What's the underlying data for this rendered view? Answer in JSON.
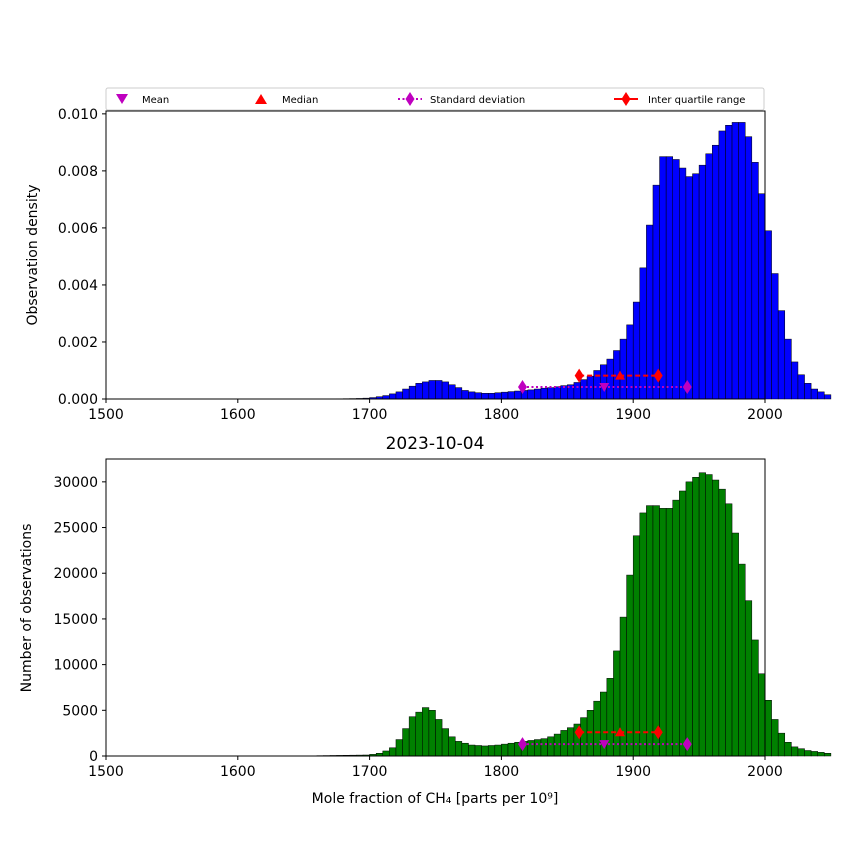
{
  "legend": {
    "placement": "top",
    "items": [
      {
        "label": "Mean",
        "marker": "triangle-down",
        "color": "#bf00bf"
      },
      {
        "label": "Median",
        "marker": "triangle-up",
        "color": "#ff0000"
      },
      {
        "label": "Standard deviation",
        "marker": "diamond-dotted-line",
        "color": "#bf00bf"
      },
      {
        "label": "Inter quartile range",
        "marker": "diamond-solid-line",
        "color": "#ff0000"
      }
    ]
  },
  "chart_data": [
    {
      "type": "bar",
      "title": "",
      "xlabel": "",
      "ylabel": "Observation density",
      "xlim": [
        1500,
        2000
      ],
      "ylim": [
        0,
        0.0101
      ],
      "xticks": [
        1500,
        1600,
        1700,
        1800,
        1900,
        2000
      ],
      "xtick_labels": [
        "1500",
        "1600",
        "1700",
        "1800",
        "1900",
        "2000"
      ],
      "yticks": [
        0,
        0.002,
        0.004,
        0.006,
        0.008,
        0.01
      ],
      "ytick_labels": [
        "0.000",
        "0.002",
        "0.004",
        "0.006",
        "0.008",
        "0.010"
      ],
      "bin_start": 1500,
      "bin_width": 5,
      "bar_color": "#0000ff",
      "values": [
        0,
        0,
        0,
        0,
        0,
        0,
        0,
        0,
        0,
        0,
        0,
        0,
        0,
        0,
        0,
        0,
        0,
        0,
        0,
        0,
        0,
        0,
        0,
        0,
        0,
        0,
        0,
        0,
        0,
        0,
        1e-06,
        2e-06,
        3e-06,
        5e-06,
        7e-06,
        9e-06,
        1.2e-05,
        1.5e-05,
        2e-05,
        3e-05,
        5e-05,
        8e-05,
        0.00012,
        0.00018,
        0.00025,
        0.00035,
        0.00045,
        0.00055,
        0.0006,
        0.00065,
        0.00065,
        0.0006,
        0.0005,
        0.0004,
        0.0003,
        0.00025,
        0.00022,
        0.0002,
        0.0002,
        0.00022,
        0.00024,
        0.00026,
        0.00028,
        0.0003,
        0.00032,
        0.00035,
        0.00038,
        0.0004,
        0.00043,
        0.00047,
        0.0005,
        0.00058,
        0.00068,
        0.0008,
        0.001,
        0.0012,
        0.0014,
        0.0017,
        0.0021,
        0.0026,
        0.0034,
        0.0046,
        0.0061,
        0.0075,
        0.0085,
        0.0085,
        0.0084,
        0.0081,
        0.0078,
        0.0079,
        0.0082,
        0.0086,
        0.0089,
        0.0094,
        0.0096,
        0.0097,
        0.0097,
        0.0092,
        0.0083,
        0.0072,
        0.0059,
        0.0044,
        0.0031,
        0.0021,
        0.0013,
        0.00085,
        0.00055,
        0.00035,
        0.00025,
        0.00015
      ],
      "stats": {
        "mean": {
          "x": 1878,
          "y": 0.00042
        },
        "median": {
          "x": 1890,
          "y": 0.00082
        },
        "std_range": {
          "x": [
            1816,
            1941
          ],
          "y": 0.00042
        },
        "iqr_range": {
          "x": [
            1859,
            1919
          ],
          "y": 0.00082
        }
      }
    },
    {
      "type": "bar",
      "title": "2023-10-04",
      "xlabel": "Mole fraction of CH₄ [parts per 10⁹]",
      "ylabel": "Number of observations",
      "xlim": [
        1500,
        2000
      ],
      "ylim": [
        0,
        32500
      ],
      "xticks": [
        1500,
        1600,
        1700,
        1800,
        1900,
        2000
      ],
      "xtick_labels": [
        "1500",
        "1600",
        "1700",
        "1800",
        "1900",
        "2000"
      ],
      "yticks": [
        0,
        5000,
        10000,
        15000,
        20000,
        25000,
        30000
      ],
      "ytick_labels": [
        "0",
        "5000",
        "10000",
        "15000",
        "20000",
        "25000",
        "30000"
      ],
      "bin_start": 1500,
      "bin_width": 5,
      "bar_color": "#008000",
      "values": [
        0,
        0,
        0,
        0,
        0,
        0,
        0,
        0,
        0,
        0,
        0,
        0,
        0,
        0,
        0,
        0,
        0,
        0,
        0,
        0,
        0,
        0,
        0,
        0,
        0,
        0,
        0,
        0,
        0,
        0,
        20,
        25,
        40,
        50,
        60,
        70,
        80,
        90,
        100,
        110,
        180,
        300,
        550,
        900,
        1800,
        3000,
        4300,
        4800,
        5300,
        5000,
        4000,
        3000,
        2100,
        1600,
        1400,
        1200,
        1150,
        1100,
        1150,
        1200,
        1300,
        1400,
        1500,
        1600,
        1700,
        1800,
        1900,
        2100,
        2400,
        2800,
        3100,
        3500,
        4200,
        5000,
        6000,
        7000,
        8500,
        11500,
        15200,
        19800,
        24100,
        26600,
        27400,
        27400,
        27100,
        27100,
        28000,
        29000,
        30000,
        30500,
        31000,
        30800,
        30200,
        29200,
        27600,
        24400,
        21000,
        17000,
        12700,
        9000,
        6100,
        4000,
        2500,
        1500,
        1000,
        800,
        600,
        500,
        400,
        300
      ],
      "stats": {
        "mean": {
          "x": 1878,
          "y": 1300
        },
        "median": {
          "x": 1890,
          "y": 2600
        },
        "std_range": {
          "x": [
            1816,
            1941
          ],
          "y": 1300
        },
        "iqr_range": {
          "x": [
            1859,
            1919
          ],
          "y": 2600
        }
      }
    }
  ]
}
